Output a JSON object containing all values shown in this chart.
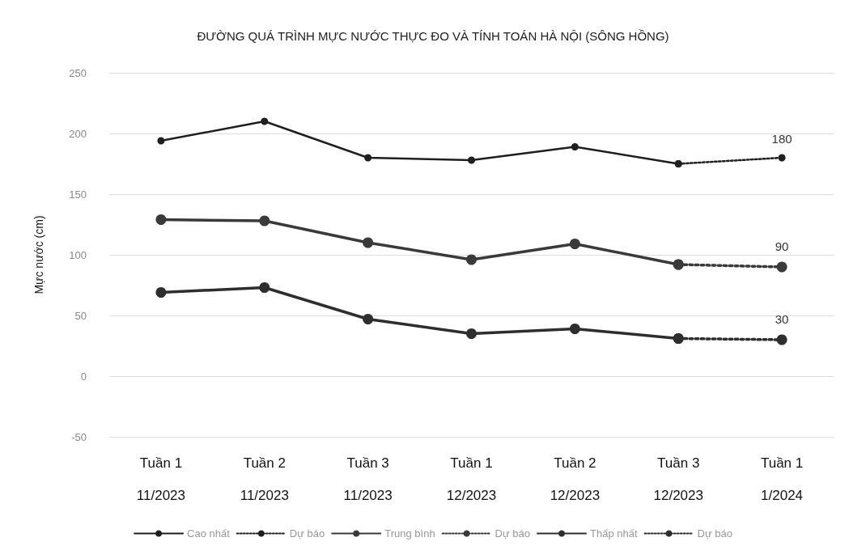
{
  "chart_data": {
    "type": "line",
    "title": "ĐƯỜNG QUÁ TRÌNH MỰC NƯỚC THỰC ĐO VÀ TÍNH TOÁN HÀ NỘI (SÔNG HỒNG)",
    "ylabel": "Mực nước (cm)",
    "categories": [
      "Tuần 1\n11/2023",
      "Tuần 2\n11/2023",
      "Tuần 3\n11/2023",
      "Tuần 1\n12/2023",
      "Tuần 2\n12/2023",
      "Tuần 3\n12/2023",
      "Tuần 1\n1/2024"
    ],
    "series": [
      {
        "name": "Cao nhất",
        "color": "#1f1f1f",
        "line_style": "solid",
        "values": [
          194,
          210,
          180,
          178,
          189,
          175,
          null
        ]
      },
      {
        "name": "Dự báo",
        "color": "#1f1f1f",
        "line_style": "dotted",
        "values": [
          null,
          null,
          null,
          null,
          null,
          175,
          180
        ],
        "value_labels": [
          null,
          null,
          null,
          null,
          null,
          null,
          "180"
        ]
      },
      {
        "name": "Trung bình",
        "color": "#3a3a3a",
        "line_style": "solid",
        "values": [
          129,
          128,
          110,
          96,
          109,
          92,
          null
        ]
      },
      {
        "name": "Dự báo",
        "color": "#3a3a3a",
        "line_style": "dotted",
        "values": [
          null,
          null,
          null,
          null,
          null,
          92,
          90
        ],
        "value_labels": [
          null,
          null,
          null,
          null,
          null,
          null,
          "90"
        ]
      },
      {
        "name": "Thấp nhất",
        "color": "#2e2e2e",
        "line_style": "solid",
        "values": [
          69,
          73,
          47,
          35,
          39,
          31,
          null
        ]
      },
      {
        "name": "Dự báo",
        "color": "#2e2e2e",
        "line_style": "dotted",
        "values": [
          null,
          null,
          null,
          null,
          null,
          31,
          30
        ],
        "value_labels": [
          null,
          null,
          null,
          null,
          null,
          null,
          "30"
        ]
      }
    ],
    "ylim": [
      -50,
      250
    ],
    "yticks": [
      -50,
      0,
      50,
      100,
      150,
      200,
      250
    ],
    "grid": "y",
    "legend": "bottom",
    "marker": "circle"
  }
}
